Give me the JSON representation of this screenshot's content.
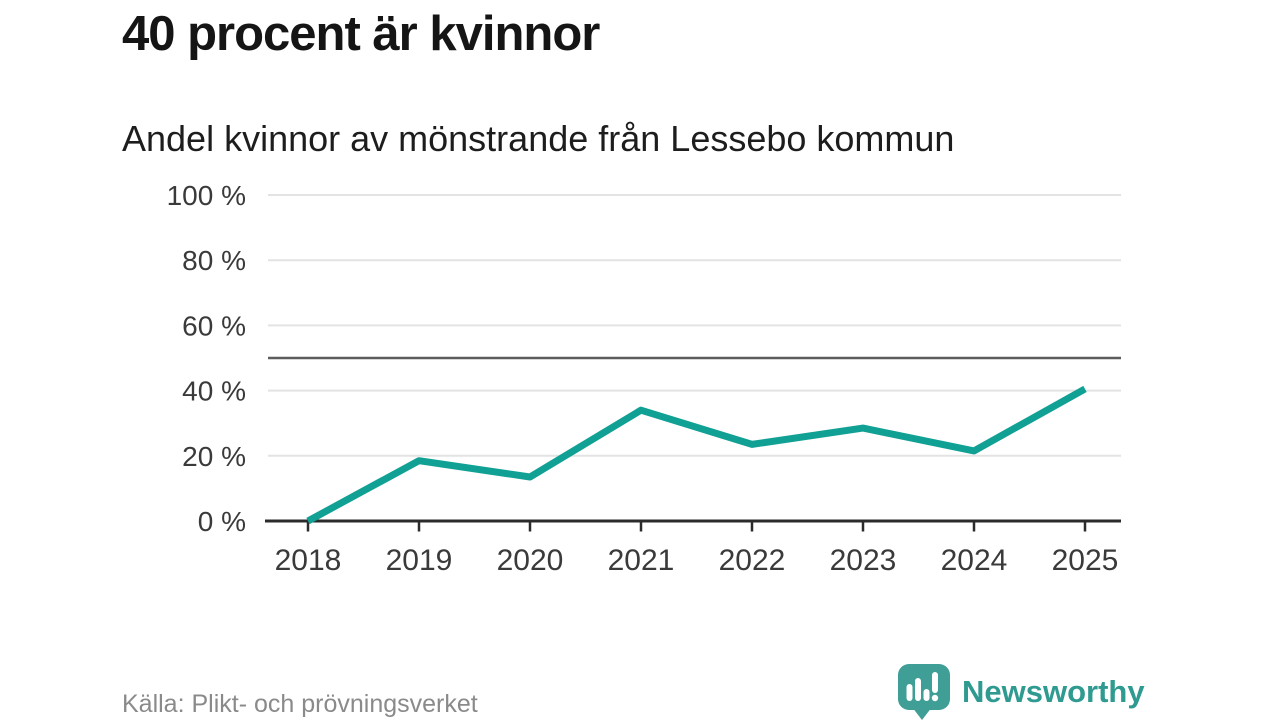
{
  "chart_data": {
    "type": "line",
    "title": "40 procent är kvinnor",
    "subtitle": "Andel kvinnor av mönstrande från Lessebo kommun",
    "categories": [
      "2018",
      "2019",
      "2020",
      "2021",
      "2022",
      "2023",
      "2024",
      "2025"
    ],
    "values": [
      0,
      18.5,
      13.5,
      34,
      23.5,
      28.5,
      21.5,
      40.5
    ],
    "unit": "%",
    "ylim": [
      0,
      100
    ],
    "y_ticks": [
      0,
      20,
      40,
      60,
      80,
      100
    ],
    "y_tick_labels": [
      "0 %",
      "20 %",
      "40 %",
      "60 %",
      "80 %",
      "100 %"
    ],
    "reference_line": 50,
    "grid": "horizontal",
    "legend": "none",
    "line_color": "#11a094",
    "gridline_color": "#e3e3e3",
    "reference_line_color": "#5d5d5e",
    "axis_color": "#2b2b2b",
    "tick_label_color": "#3a3a3a"
  },
  "footer": {
    "source": "Källa: Plikt- och prövningsverket",
    "logo_text": "Newsworthy",
    "logo_color": "#3f9e95",
    "logo_text_color": "#2f9a90"
  }
}
